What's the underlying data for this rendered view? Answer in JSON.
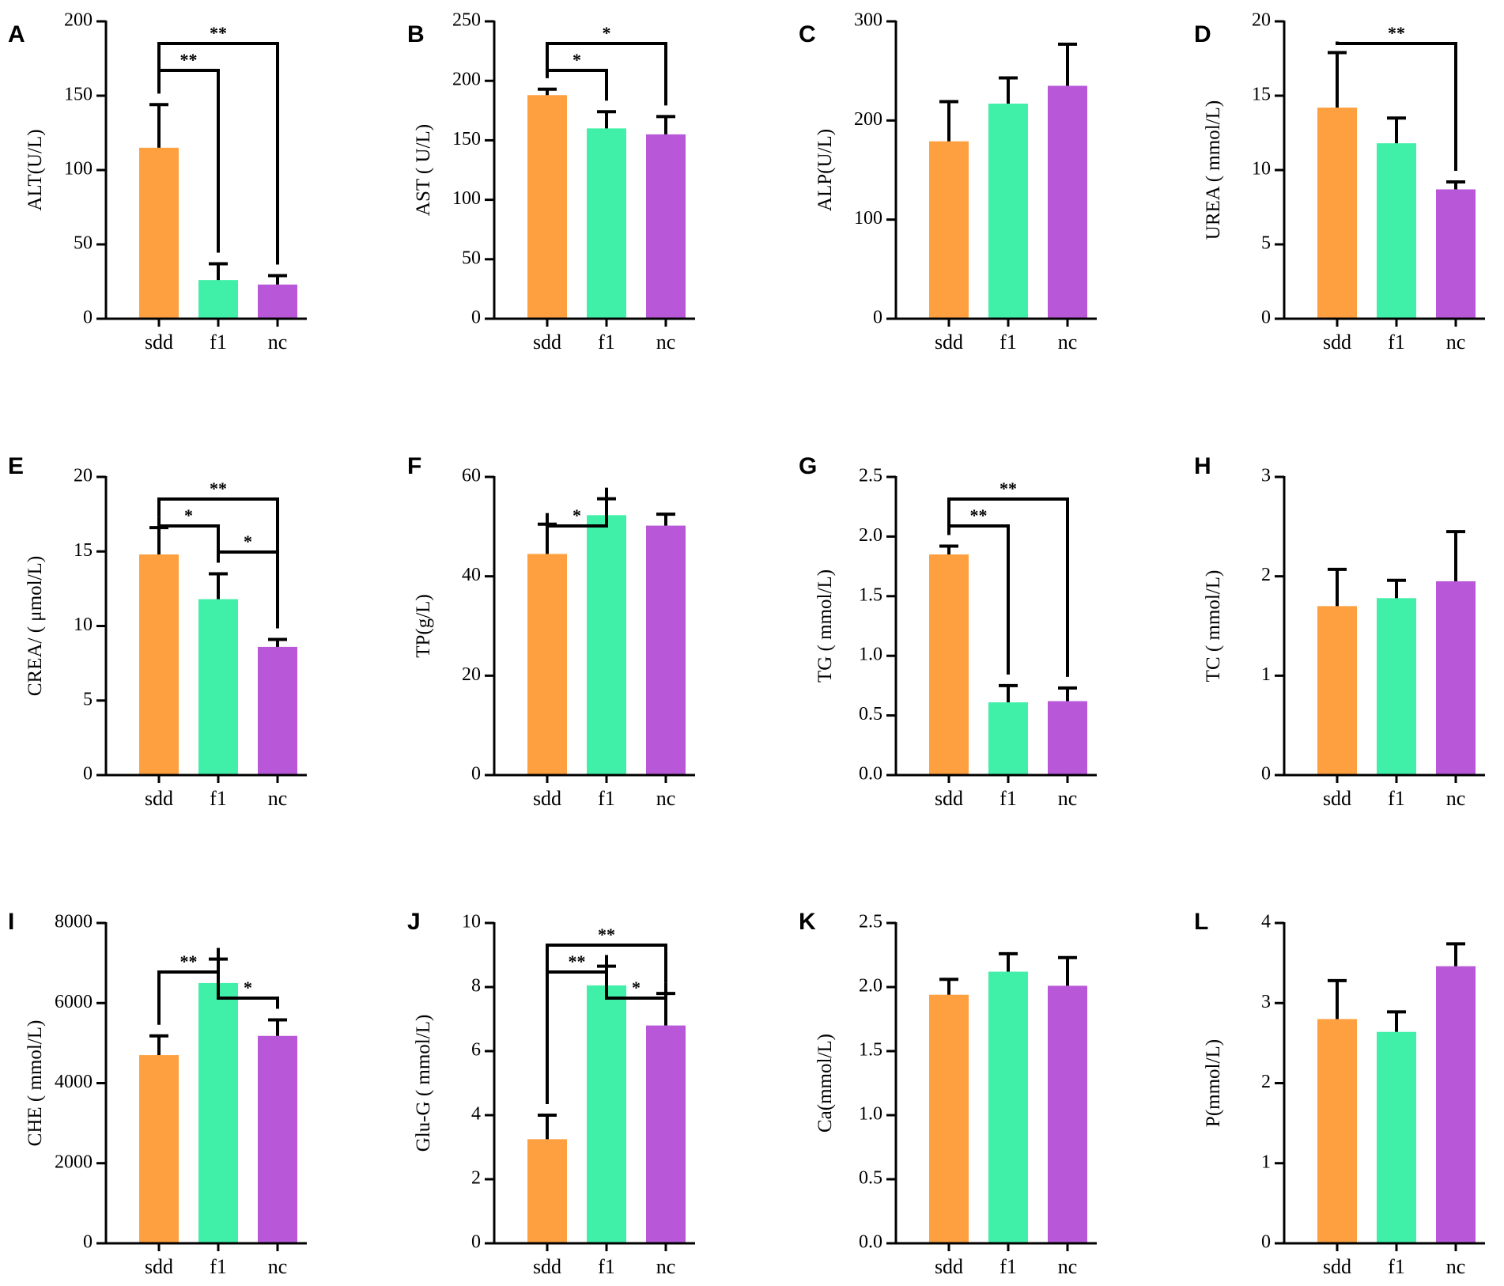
{
  "colors": {
    "sdd": "#FFA040",
    "f1": "#40F0A8",
    "nc": "#B858D8",
    "ink": "#000000"
  },
  "chart_data": [
    {
      "panel": "A",
      "type": "bar",
      "ylabel": "ALT(U/L)",
      "ylim": [
        0,
        200
      ],
      "yticks": [
        "0",
        "50",
        "100",
        "150",
        "200"
      ],
      "tick_values": [
        0,
        50,
        100,
        150,
        200
      ],
      "categories": [
        "sdd",
        "f1",
        "nc"
      ],
      "values": [
        115,
        26,
        23
      ],
      "errors": [
        29,
        11,
        6
      ],
      "significance": [
        {
          "from": 0,
          "to": 2,
          "label": "**"
        },
        {
          "from": 0,
          "to": 1,
          "label": "**"
        }
      ]
    },
    {
      "panel": "B",
      "type": "bar",
      "ylabel": "AST ( U/L)",
      "ylim": [
        0,
        250
      ],
      "yticks": [
        "0",
        "50",
        "100",
        "150",
        "200",
        "250"
      ],
      "tick_values": [
        0,
        50,
        100,
        150,
        200,
        250
      ],
      "categories": [
        "sdd",
        "f1",
        "nc"
      ],
      "values": [
        188,
        160,
        155
      ],
      "errors": [
        5,
        14,
        15
      ],
      "significance": [
        {
          "from": 0,
          "to": 2,
          "label": "*"
        },
        {
          "from": 0,
          "to": 1,
          "label": "*"
        }
      ]
    },
    {
      "panel": "C",
      "type": "bar",
      "ylabel": "ALP(U/L)",
      "ylim": [
        0,
        300
      ],
      "yticks": [
        "0",
        "100",
        "200",
        "300"
      ],
      "tick_values": [
        0,
        100,
        200,
        300
      ],
      "categories": [
        "sdd",
        "f1",
        "nc"
      ],
      "values": [
        179,
        217,
        235
      ],
      "errors": [
        40,
        26,
        42
      ],
      "significance": []
    },
    {
      "panel": "D",
      "type": "bar",
      "ylabel": "UREA ( mmol/L)",
      "ylim": [
        0,
        20
      ],
      "yticks": [
        "0",
        "5",
        "10",
        "15",
        "20"
      ],
      "tick_values": [
        0,
        5,
        10,
        15,
        20
      ],
      "categories": [
        "sdd",
        "f1",
        "nc"
      ],
      "values": [
        14.2,
        11.8,
        8.7
      ],
      "errors": [
        3.7,
        1.7,
        0.5
      ],
      "significance": [
        {
          "from": 0,
          "to": 2,
          "label": "**"
        }
      ]
    },
    {
      "panel": "E",
      "type": "bar",
      "ylabel": "CREA/ ( μmol/L)",
      "ylim": [
        0,
        20
      ],
      "yticks": [
        "0",
        "5",
        "10",
        "15",
        "20"
      ],
      "tick_values": [
        0,
        5,
        10,
        15,
        20
      ],
      "categories": [
        "sdd",
        "f1",
        "nc"
      ],
      "values": [
        14.8,
        11.8,
        8.6
      ],
      "errors": [
        1.8,
        1.7,
        0.5
      ],
      "significance": [
        {
          "from": 0,
          "to": 2,
          "label": "**"
        },
        {
          "from": 0,
          "to": 1,
          "label": "*"
        },
        {
          "from": 1,
          "to": 2,
          "label": "*"
        }
      ]
    },
    {
      "panel": "F",
      "type": "bar",
      "ylabel": "TP(g/L)",
      "ylim": [
        0,
        60
      ],
      "yticks": [
        "0",
        "20",
        "40",
        "60"
      ],
      "tick_values": [
        0,
        20,
        40,
        60
      ],
      "categories": [
        "sdd",
        "f1",
        "nc"
      ],
      "values": [
        44.5,
        52.3,
        50.2
      ],
      "errors": [
        6.0,
        3.3,
        2.3
      ],
      "significance": [
        {
          "from": 0,
          "to": 1,
          "label": "*"
        }
      ]
    },
    {
      "panel": "G",
      "type": "bar",
      "ylabel": "TG ( mmol/L)",
      "ylim": [
        0,
        2.5
      ],
      "yticks": [
        "0.0",
        "0.5",
        "1.0",
        "1.5",
        "2.0",
        "2.5"
      ],
      "tick_values": [
        0,
        0.5,
        1.0,
        1.5,
        2.0,
        2.5
      ],
      "categories": [
        "sdd",
        "f1",
        "nc"
      ],
      "values": [
        1.85,
        0.61,
        0.62
      ],
      "errors": [
        0.07,
        0.14,
        0.11
      ],
      "significance": [
        {
          "from": 0,
          "to": 2,
          "label": "**"
        },
        {
          "from": 0,
          "to": 1,
          "label": "**"
        }
      ]
    },
    {
      "panel": "H",
      "type": "bar",
      "ylabel": "TC ( mmol/L)",
      "ylim": [
        0,
        3
      ],
      "yticks": [
        "0",
        "1",
        "2",
        "3"
      ],
      "tick_values": [
        0,
        1,
        2,
        3
      ],
      "categories": [
        "sdd",
        "f1",
        "nc"
      ],
      "values": [
        1.7,
        1.78,
        1.95
      ],
      "errors": [
        0.37,
        0.18,
        0.5
      ],
      "significance": []
    },
    {
      "panel": "I",
      "type": "bar",
      "ylabel": "CHE ( mmol/L)",
      "ylim": [
        0,
        8000
      ],
      "yticks": [
        "0",
        "2000",
        "4000",
        "6000",
        "8000"
      ],
      "tick_values": [
        0,
        2000,
        4000,
        6000,
        8000
      ],
      "categories": [
        "sdd",
        "f1",
        "nc"
      ],
      "values": [
        4700,
        6500,
        5180
      ],
      "errors": [
        480,
        600,
        400
      ],
      "significance": [
        {
          "from": 0,
          "to": 1,
          "label": "**"
        },
        {
          "from": 1,
          "to": 2,
          "label": "*"
        }
      ]
    },
    {
      "panel": "J",
      "type": "bar",
      "ylabel": "Glu-G ( mmol/L)",
      "ylim": [
        0,
        10
      ],
      "yticks": [
        "0",
        "2",
        "4",
        "6",
        "8",
        "10"
      ],
      "tick_values": [
        0,
        2,
        4,
        6,
        8,
        10
      ],
      "categories": [
        "sdd",
        "f1",
        "nc"
      ],
      "values": [
        3.25,
        8.05,
        6.8
      ],
      "errors": [
        0.75,
        0.6,
        1.0
      ],
      "significance": [
        {
          "from": 0,
          "to": 2,
          "label": "**"
        },
        {
          "from": 0,
          "to": 1,
          "label": "**"
        },
        {
          "from": 1,
          "to": 2,
          "label": "*"
        }
      ]
    },
    {
      "panel": "K",
      "type": "bar",
      "ylabel": "Ca(mmol/L)",
      "ylim": [
        0,
        2.5
      ],
      "yticks": [
        "0.0",
        "0.5",
        "1.0",
        "1.5",
        "2.0",
        "2.5"
      ],
      "tick_values": [
        0,
        0.5,
        1.0,
        1.5,
        2.0,
        2.5
      ],
      "categories": [
        "sdd",
        "f1",
        "nc"
      ],
      "values": [
        1.94,
        2.12,
        2.01
      ],
      "errors": [
        0.12,
        0.14,
        0.22
      ],
      "significance": []
    },
    {
      "panel": "L",
      "type": "bar",
      "ylabel": "P(mmol/L)",
      "ylim": [
        0,
        4
      ],
      "yticks": [
        "0",
        "1",
        "2",
        "3",
        "4"
      ],
      "tick_values": [
        0,
        1,
        2,
        3,
        4
      ],
      "categories": [
        "sdd",
        "f1",
        "nc"
      ],
      "values": [
        2.8,
        2.64,
        3.46
      ],
      "errors": [
        0.48,
        0.25,
        0.28
      ],
      "significance": []
    }
  ]
}
